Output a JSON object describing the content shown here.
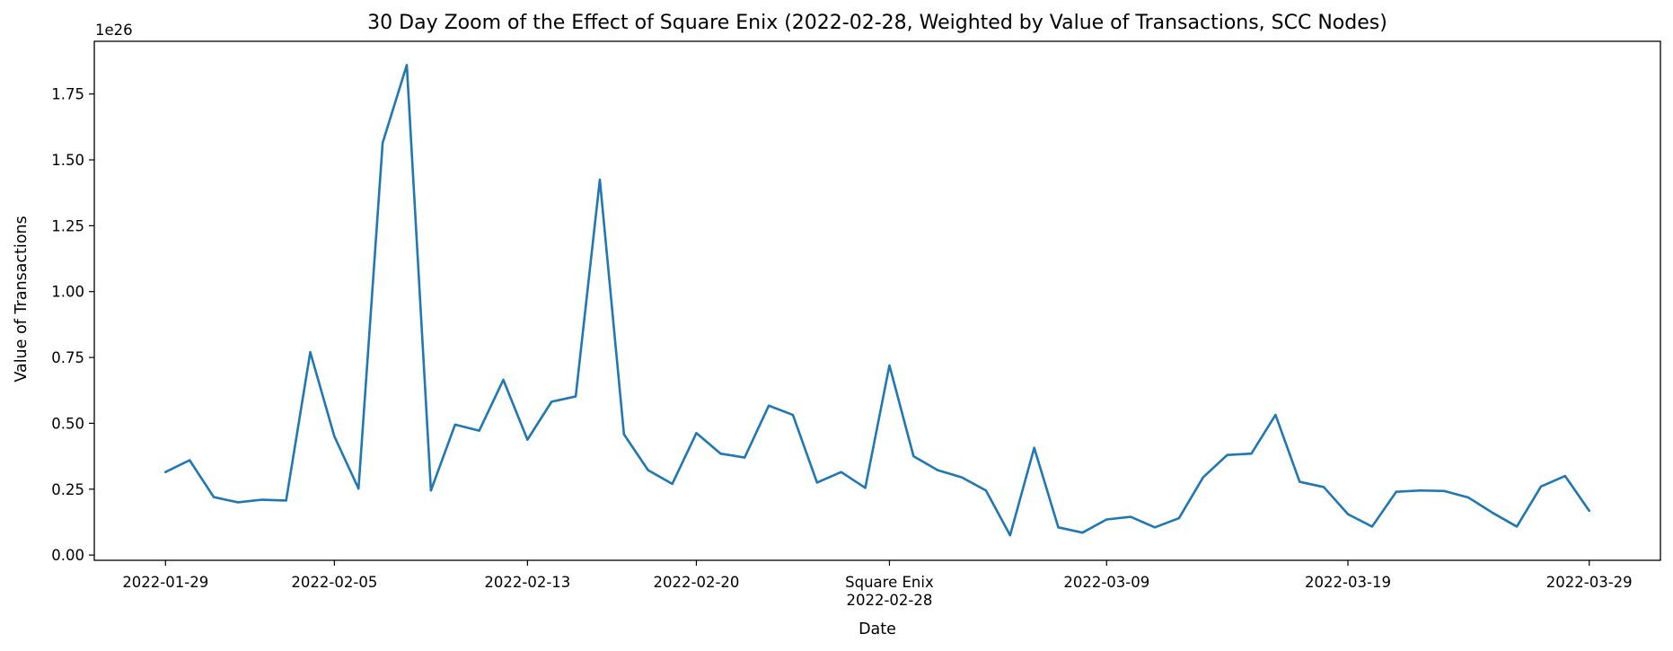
{
  "chart_data": {
    "type": "line",
    "title": "30 Day Zoom of the Effect of Square Enix (2022-02-28, Weighted by Value of Transactions, SCC Nodes)",
    "xlabel": "Date",
    "ylabel": "Value of Transactions",
    "y_offset_label": "1e26",
    "ylim": [
      -0.02,
      1.95
    ],
    "y_ticks": [
      0.0,
      0.25,
      0.5,
      0.75,
      1.0,
      1.25,
      1.5,
      1.75
    ],
    "y_tick_labels": [
      "0.00",
      "0.25",
      "0.50",
      "0.75",
      "1.00",
      "1.25",
      "1.50",
      "1.75"
    ],
    "x_ticks": [
      {
        "date": "2022-01-29",
        "label": "2022-01-29"
      },
      {
        "date": "2022-02-05",
        "label": "2022-02-05"
      },
      {
        "date": "2022-02-13",
        "label": "2022-02-13"
      },
      {
        "date": "2022-02-20",
        "label": "2022-02-20"
      },
      {
        "date": "2022-02-28",
        "label": "2022-02-28"
      },
      {
        "date": "2022-03-09",
        "label": "2022-03-09"
      },
      {
        "date": "2022-03-19",
        "label": "2022-03-19"
      },
      {
        "date": "2022-03-29",
        "label": "2022-03-29"
      }
    ],
    "event_label": "Square Enix",
    "line_color": "#1f77b4",
    "grid": false,
    "series": [
      {
        "x": [
          "2022-01-29",
          "2022-01-30",
          "2022-01-31",
          "2022-02-01",
          "2022-02-02",
          "2022-02-03",
          "2022-02-04",
          "2022-02-05",
          "2022-02-06",
          "2022-02-07",
          "2022-02-08",
          "2022-02-09",
          "2022-02-10",
          "2022-02-11",
          "2022-02-12",
          "2022-02-13",
          "2022-02-14",
          "2022-02-15",
          "2022-02-16",
          "2022-02-17",
          "2022-02-18",
          "2022-02-19",
          "2022-02-20",
          "2022-02-21",
          "2022-02-22",
          "2022-02-23",
          "2022-02-24",
          "2022-02-25",
          "2022-02-26",
          "2022-02-27",
          "2022-02-28",
          "2022-03-01",
          "2022-03-02",
          "2022-03-03",
          "2022-03-04",
          "2022-03-05",
          "2022-03-06",
          "2022-03-07",
          "2022-03-08",
          "2022-03-09",
          "2022-03-10",
          "2022-03-11",
          "2022-03-12",
          "2022-03-13",
          "2022-03-14",
          "2022-03-15",
          "2022-03-16",
          "2022-03-17",
          "2022-03-18",
          "2022-03-19",
          "2022-03-20",
          "2022-03-21",
          "2022-03-22",
          "2022-03-23",
          "2022-03-24",
          "2022-03-25",
          "2022-03-26",
          "2022-03-27",
          "2022-03-28",
          "2022-03-29"
        ],
        "values": [
          0.315,
          0.36,
          0.22,
          0.2,
          0.21,
          0.207,
          0.77,
          0.45,
          0.252,
          1.565,
          1.86,
          0.245,
          0.495,
          0.472,
          0.665,
          0.438,
          0.582,
          0.602,
          1.425,
          0.458,
          0.322,
          0.27,
          0.463,
          0.385,
          0.37,
          0.567,
          0.532,
          0.275,
          0.315,
          0.255,
          0.72,
          0.375,
          0.322,
          0.295,
          0.245,
          0.075,
          0.407,
          0.105,
          0.085,
          0.135,
          0.145,
          0.105,
          0.14,
          0.295,
          0.38,
          0.385,
          0.532,
          0.278,
          0.258,
          0.155,
          0.108,
          0.24,
          0.245,
          0.243,
          0.218,
          0.16,
          0.108,
          0.26,
          0.3,
          0.168
        ]
      }
    ]
  }
}
